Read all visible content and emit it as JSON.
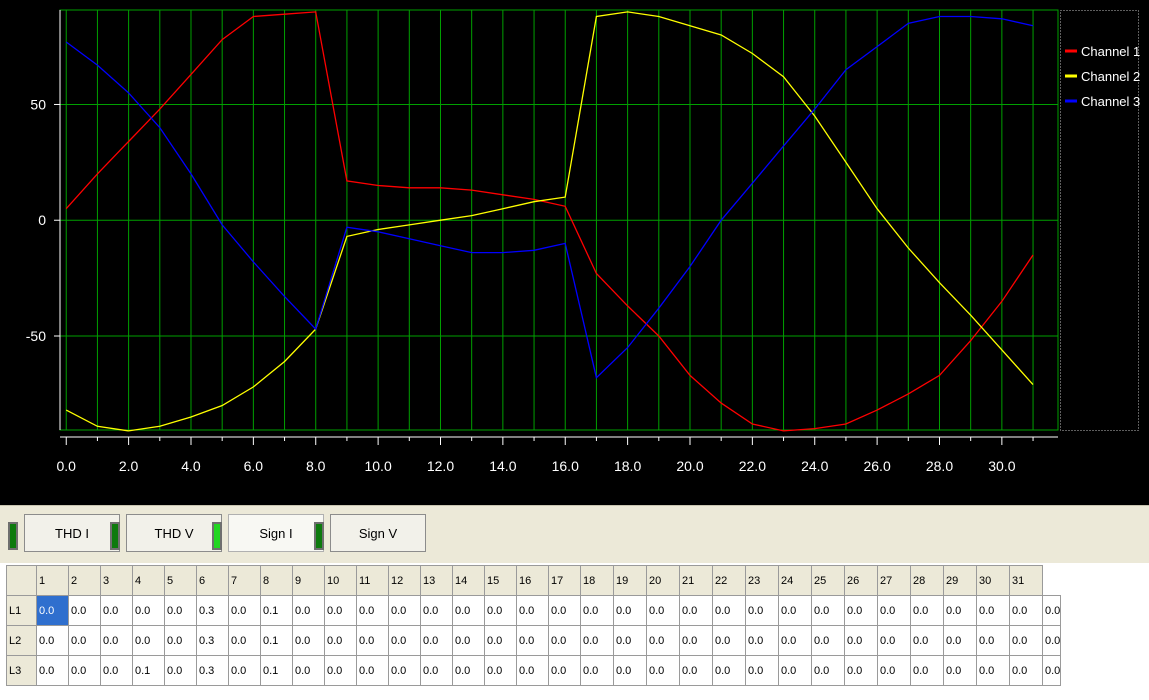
{
  "chart_data": {
    "type": "line",
    "x": [
      0,
      1,
      2,
      3,
      4,
      5,
      6,
      7,
      8,
      9,
      10,
      11,
      12,
      13,
      14,
      15,
      16,
      17,
      18,
      19,
      20,
      21,
      22,
      23,
      24,
      25,
      26,
      27,
      28,
      29,
      30,
      31
    ],
    "series": [
      {
        "name": "Channel 1",
        "color": "#ff0000",
        "values": [
          5,
          20,
          34,
          48,
          63,
          78,
          88,
          89,
          90,
          17,
          15,
          14,
          14,
          13,
          11,
          9,
          6,
          -23,
          -37,
          -50,
          -67,
          -79,
          -88,
          -91,
          -90,
          -88,
          -82,
          -75,
          -67,
          -52,
          -35,
          -15
        ]
      },
      {
        "name": "Channel 2",
        "color": "#ffff00",
        "values": [
          -82,
          -89,
          -91,
          -89,
          -85,
          -80,
          -72,
          -61,
          -47,
          -7,
          -4,
          -2,
          0,
          2,
          5,
          8,
          10,
          88,
          90,
          88,
          84,
          80,
          72,
          62,
          45,
          25,
          5,
          -12,
          -27,
          -41,
          -56,
          -71
        ]
      },
      {
        "name": "Channel 3",
        "color": "#0000ff",
        "values": [
          77,
          67,
          55,
          40,
          20,
          -2,
          -18,
          -33,
          -47,
          -3,
          -5,
          -8,
          -11,
          -14,
          -14,
          -13,
          -10,
          -68,
          -55,
          -38,
          -20,
          0,
          16,
          32,
          48,
          65,
          75,
          85,
          88,
          88,
          87,
          84
        ]
      }
    ],
    "xticks": [
      "0.0",
      "2.0",
      "4.0",
      "6.0",
      "8.0",
      "10.0",
      "12.0",
      "14.0",
      "16.0",
      "18.0",
      "20.0",
      "22.0",
      "24.0",
      "26.0",
      "28.0",
      "30.0"
    ],
    "xtick_values": [
      0,
      2,
      4,
      6,
      8,
      10,
      12,
      14,
      16,
      18,
      20,
      22,
      24,
      26,
      28,
      30
    ],
    "yticks": [
      "50",
      "0",
      "-50"
    ],
    "ytick_values": [
      50,
      0,
      -50
    ],
    "xlim": [
      -0.2,
      31.8
    ],
    "ylim": [
      -90.6,
      90.8
    ],
    "grid": true,
    "legend_position": "right",
    "background": "#000000",
    "grid_color": "#00a000"
  },
  "toolbar": {
    "buttons": [
      {
        "label": "THD I",
        "led_on": false,
        "active": false
      },
      {
        "label": "THD V",
        "led_on": false,
        "active": false
      },
      {
        "label": "Sign I",
        "led_on": true,
        "active": true
      },
      {
        "label": "Sign V",
        "led_on": false,
        "active": false
      }
    ]
  },
  "table": {
    "header": [
      "",
      "1",
      "2",
      "3",
      "4",
      "5",
      "6",
      "7",
      "8",
      "9",
      "10",
      "11",
      "12",
      "13",
      "14",
      "15",
      "16",
      "17",
      "18",
      "19",
      "20",
      "21",
      "22",
      "23",
      "24",
      "25",
      "26",
      "27",
      "28",
      "29",
      "30",
      "31"
    ],
    "rows": [
      {
        "label": "L1",
        "values": [
          "0.0",
          "0.0",
          "0.0",
          "0.0",
          "0.0",
          "0.3",
          "0.0",
          "0.1",
          "0.0",
          "0.0",
          "0.0",
          "0.0",
          "0.0",
          "0.0",
          "0.0",
          "0.0",
          "0.0",
          "0.0",
          "0.0",
          "0.0",
          "0.0",
          "0.0",
          "0.0",
          "0.0",
          "0.0",
          "0.0",
          "0.0",
          "0.0",
          "0.0",
          "0.0",
          "0.0",
          "0.0"
        ]
      },
      {
        "label": "L2",
        "values": [
          "0.0",
          "0.0",
          "0.0",
          "0.0",
          "0.0",
          "0.3",
          "0.0",
          "0.1",
          "0.0",
          "0.0",
          "0.0",
          "0.0",
          "0.0",
          "0.0",
          "0.0",
          "0.0",
          "0.0",
          "0.0",
          "0.0",
          "0.0",
          "0.0",
          "0.0",
          "0.0",
          "0.0",
          "0.0",
          "0.0",
          "0.0",
          "0.0",
          "0.0",
          "0.0",
          "0.0",
          "0.0"
        ]
      },
      {
        "label": "L3",
        "values": [
          "0.0",
          "0.0",
          "0.0",
          "0.1",
          "0.0",
          "0.3",
          "0.0",
          "0.1",
          "0.0",
          "0.0",
          "0.0",
          "0.0",
          "0.0",
          "0.0",
          "0.0",
          "0.0",
          "0.0",
          "0.0",
          "0.0",
          "0.0",
          "0.0",
          "0.0",
          "0.0",
          "0.0",
          "0.0",
          "0.0",
          "0.0",
          "0.0",
          "0.0",
          "0.0",
          "0.0",
          "0.0"
        ]
      }
    ],
    "selected_color": "#2f6fce"
  }
}
